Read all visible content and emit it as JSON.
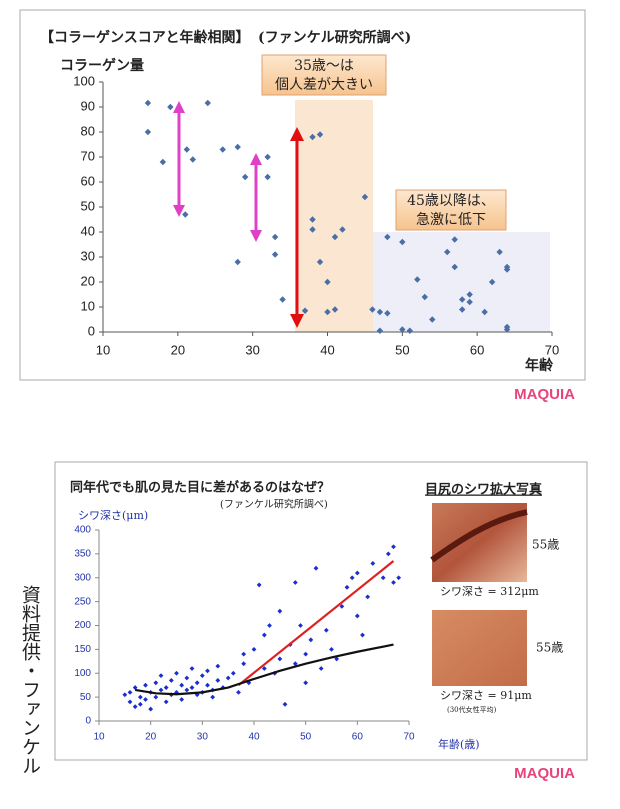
{
  "chart_data": [
    {
      "type": "scatter",
      "title": "【コラーゲンスコアと年齢相関】",
      "subtitle": "(ファンケル研究所調べ)",
      "y_label": "コラーゲン量",
      "x_label": "年齢",
      "annotations": [
        [
          "35歳～は",
          "個人差が大きい"
        ],
        [
          "45歳以降は、",
          "急激に低下"
        ]
      ],
      "xlim": [
        10,
        70
      ],
      "xticks": [
        10,
        20,
        30,
        40,
        50,
        60,
        70
      ],
      "ylim": [
        0,
        100
      ],
      "yticks": [
        0,
        10,
        20,
        30,
        40,
        50,
        60,
        70,
        80,
        90,
        100
      ],
      "series": [
        {
          "color": "#4a6fa5",
          "mode": "markers",
          "x": [
            16,
            16,
            19,
            18,
            21.2,
            22,
            24,
            21,
            26,
            28,
            29,
            28,
            32,
            32,
            33,
            33,
            34,
            37,
            38,
            39,
            38,
            38,
            39,
            40,
            40,
            41,
            41,
            42,
            45,
            46,
            47,
            47,
            48,
            48,
            50,
            50,
            51,
            52,
            53,
            54,
            56,
            57,
            57,
            58,
            58,
            59,
            59,
            61,
            62,
            63,
            64,
            64,
            64,
            64
          ],
          "values": [
            91.6,
            80,
            90,
            68,
            73,
            69,
            91.6,
            47,
            73,
            74,
            62,
            28,
            70,
            62,
            38,
            31,
            13,
            8.5,
            78,
            79,
            45,
            41,
            28,
            20,
            8,
            9,
            38,
            41,
            54,
            9,
            8,
            0.5,
            38,
            7.5,
            36,
            1,
            0.5,
            21,
            14,
            5,
            32,
            37,
            26,
            9,
            13,
            15,
            12,
            8,
            20,
            32,
            26,
            25,
            2,
            1
          ]
        }
      ]
    },
    {
      "type": "scatter",
      "title": "同年代でも肌の見た目に差があるのはなぜ？",
      "subtitle": "(ファンケル研究所調べ)",
      "y_label": "シワ深さ(μm)",
      "x_label": "年齢(歳)",
      "xlim": [
        10,
        70
      ],
      "xticks": [
        10,
        20,
        30,
        40,
        50,
        60,
        70
      ],
      "ylim": [
        0,
        400
      ],
      "yticks": [
        0,
        50,
        100,
        150,
        200,
        250,
        300,
        350,
        400
      ],
      "series": [
        {
          "color": "#1a2fd0",
          "mode": "markers",
          "x": [
            15,
            16,
            16,
            17,
            17,
            18,
            18,
            19,
            19,
            20,
            20,
            21,
            21,
            22,
            22,
            23,
            23,
            24,
            24,
            25,
            25,
            26,
            26,
            27,
            27,
            28,
            28,
            29,
            29,
            30,
            30,
            31,
            31,
            32,
            32,
            33,
            33,
            34,
            35,
            36,
            37,
            38,
            38,
            39,
            40,
            41,
            42,
            42,
            43,
            44,
            45,
            45,
            46,
            47,
            48,
            48,
            49,
            50,
            50,
            51,
            52,
            53,
            54,
            55,
            56,
            57,
            58,
            59,
            60,
            60,
            61,
            62,
            63,
            65,
            66,
            67,
            67,
            68
          ],
          "values": [
            55,
            60,
            40,
            70,
            30,
            50,
            35,
            45,
            75,
            60,
            25,
            80,
            50,
            65,
            95,
            70,
            40,
            85,
            55,
            60,
            100,
            75,
            45,
            90,
            65,
            70,
            110,
            55,
            80,
            95,
            60,
            105,
            75,
            65,
            50,
            85,
            115,
            70,
            90,
            100,
            60,
            120,
            140,
            80,
            150,
            285,
            110,
            180,
            200,
            100,
            130,
            230,
            35,
            160,
            290,
            120,
            200,
            140,
            80,
            170,
            320,
            110,
            190,
            150,
            130,
            240,
            280,
            300,
            220,
            310,
            180,
            260,
            330,
            300,
            350,
            290,
            365,
            300
          ]
        },
        {
          "color": "#e02020",
          "mode": "line",
          "x": [
            37,
            67
          ],
          "values": [
            75,
            335
          ]
        },
        {
          "color": "#111111",
          "mode": "line",
          "x": [
            17,
            21,
            25,
            30,
            35,
            40,
            45,
            50,
            55,
            60,
            67
          ],
          "values": [
            65,
            58,
            56,
            60,
            70,
            88,
            105,
            120,
            133,
            145,
            160
          ]
        }
      ],
      "photo_panel": {
        "title": "目尻のシワ拡大写真",
        "photos": [
          {
            "age": "55歳",
            "caption": "シワ深さ = 312μm"
          },
          {
            "age": "55歳",
            "caption": "シワ深さ = 91μm",
            "note": "(30代女性平均)"
          }
        ]
      }
    }
  ],
  "side_caption": "資料提供・ファンケル",
  "watermarks": [
    "MAQUIA",
    "MAQUIA"
  ]
}
